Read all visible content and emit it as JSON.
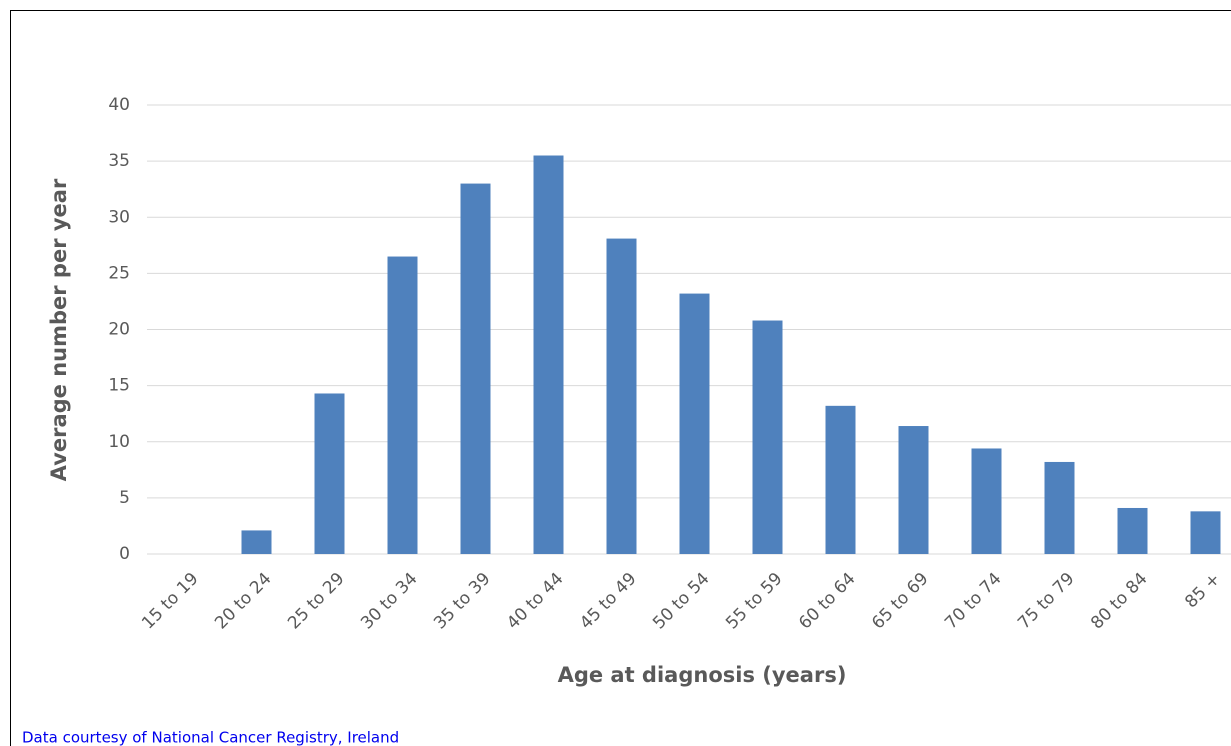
{
  "chart_data": {
    "type": "bar",
    "categories": [
      "15 to 19",
      "20 to 24",
      "25 to 29",
      "30 to 34",
      "35 to 39",
      "40 to 44",
      "45 to 49",
      "50 to 54",
      "55 to 59",
      "60 to 64",
      "65 to 69",
      "70 to 74",
      "75 to 79",
      "80 to 84",
      "85 +"
    ],
    "values": [
      0,
      2.1,
      14.3,
      26.5,
      33.0,
      35.5,
      28.1,
      23.2,
      20.8,
      13.2,
      11.4,
      9.4,
      8.2,
      4.1,
      3.8
    ],
    "color": "#4f81bd",
    "ylim": [
      0,
      40
    ],
    "yticks": [
      0,
      5,
      10,
      15,
      20,
      25,
      30,
      35,
      40
    ],
    "grid": true,
    "x_label": "Age at diagnosis (years)",
    "y_label": "Average number per year",
    "source": "Data courtesy of National Cancer Registry, Ireland"
  }
}
